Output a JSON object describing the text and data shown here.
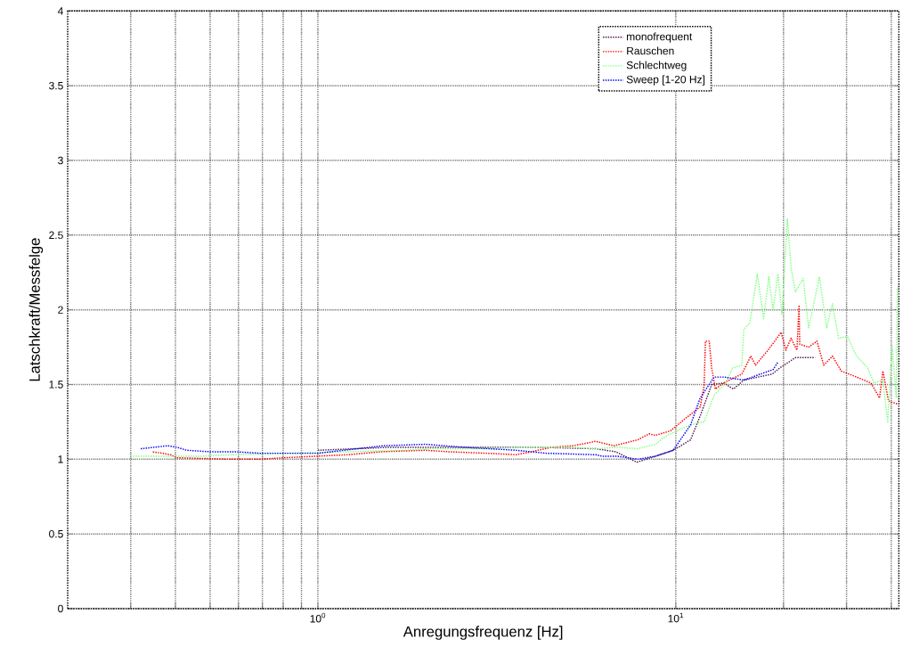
{
  "chart_data": {
    "type": "line",
    "xlabel": "Anregungsfrequenz [Hz]",
    "ylabel": "Latschkraft/Messfelge",
    "log": "x",
    "xlim": [
      0.2,
      42
    ],
    "ylim": [
      0,
      4
    ],
    "xticks": [
      {
        "value": 0.3,
        "label": null
      },
      {
        "value": 0.4,
        "label": null
      },
      {
        "value": 0.5,
        "label": null
      },
      {
        "value": 0.6,
        "label": null
      },
      {
        "value": 0.7,
        "label": null
      },
      {
        "value": 0.8,
        "label": null
      },
      {
        "value": 0.9,
        "label": null
      },
      {
        "value": 1,
        "label": "10$^{0}$"
      },
      {
        "value": 10,
        "label": "10$^{1}$"
      },
      {
        "value": 20,
        "label": null
      },
      {
        "value": 30,
        "label": null
      },
      {
        "value": 40,
        "label": null
      }
    ],
    "yticks": [
      0,
      0.5,
      1,
      1.5,
      2,
      2.5,
      3,
      3.5,
      4
    ],
    "grid": true,
    "legend": "top right",
    "line_style": "dotted",
    "series": [
      {
        "name": "monofrequent",
        "color": "#4d194d",
        "x": [
          1.0,
          1.59,
          2.8,
          4.11,
          5.98,
          6.8,
          7.78,
          8.77,
          9.84,
          11.0,
          11.7,
          12.6,
          13.6,
          14.5,
          15.5,
          18.6,
          19.5,
          21.6,
          24.5
        ],
        "values": [
          1.06,
          1.08,
          1.08,
          1.08,
          1.07,
          1.05,
          0.98,
          1.02,
          1.06,
          1.13,
          1.29,
          1.5,
          1.51,
          1.47,
          1.53,
          1.57,
          1.61,
          1.68,
          1.68
        ]
      },
      {
        "name": "Rauschen",
        "color": "#ff0000",
        "x": [
          0.346,
          0.388,
          0.404,
          0.57,
          0.687,
          0.8,
          0.99,
          1.21,
          1.5,
          2.0,
          2.32,
          2.97,
          3.58,
          3.95,
          4.5,
          5.16,
          5.98,
          6.71,
          7.83,
          8.43,
          8.77,
          9.67,
          10.6,
          11.7,
          12.0,
          12.1,
          12.4,
          12.6,
          12.9,
          13.6,
          15.3,
          16.2,
          16.7,
          18.1,
          18.9,
          19.7,
          20.3,
          21.0,
          21.8,
          22.1,
          22.2,
          23.5,
          24.8,
          25.9,
          27.4,
          29.0,
          32.0,
          35.1,
          37.1,
          37.9,
          39.3,
          41.6
        ],
        "values": [
          1.05,
          1.03,
          1.01,
          1.0,
          1.0,
          1.01,
          1.02,
          1.03,
          1.05,
          1.06,
          1.05,
          1.04,
          1.03,
          1.05,
          1.08,
          1.09,
          1.12,
          1.09,
          1.13,
          1.17,
          1.16,
          1.19,
          1.27,
          1.35,
          1.49,
          1.79,
          1.79,
          1.61,
          1.47,
          1.51,
          1.57,
          1.69,
          1.63,
          1.73,
          1.79,
          1.85,
          1.73,
          1.81,
          1.73,
          2.03,
          1.77,
          1.75,
          1.79,
          1.63,
          1.69,
          1.59,
          1.55,
          1.51,
          1.41,
          1.59,
          1.39,
          1.37
        ]
      },
      {
        "name": "Schlechtweg",
        "color": "#80ff80",
        "x": [
          0.3,
          0.47,
          0.57,
          0.83,
          1.21,
          1.78,
          2.0,
          2.81,
          3.95,
          5.16,
          5.98,
          6.86,
          7.83,
          8.77,
          9.45,
          11.0,
          12.0,
          12.8,
          13.8,
          14.4,
          15.3,
          15.5,
          16.1,
          16.9,
          17.6,
          18.2,
          18.7,
          19.3,
          19.8,
          20.5,
          21.0,
          21.6,
          22.7,
          23.5,
          25.2,
          26.4,
          27.4,
          28.5,
          30.2,
          32.0,
          34.4,
          35.8,
          37.9,
          39.1,
          40.2,
          41.3,
          41.6
        ],
        "values": [
          1.02,
          1.02,
          1.03,
          1.04,
          1.05,
          1.06,
          1.07,
          1.07,
          1.08,
          1.08,
          1.07,
          1.08,
          1.07,
          1.1,
          1.16,
          1.23,
          1.25,
          1.43,
          1.51,
          1.61,
          1.63,
          1.87,
          1.91,
          2.24,
          1.94,
          2.22,
          2.0,
          2.24,
          1.97,
          2.61,
          2.28,
          2.12,
          2.21,
          1.88,
          2.22,
          1.88,
          2.04,
          1.81,
          1.82,
          1.69,
          1.61,
          1.51,
          1.53,
          1.25,
          1.76,
          1.41,
          2.15
        ]
      },
      {
        "name": "Sweep [1-20 Hz]",
        "color": "#0000ff",
        "x": [
          0.32,
          0.38,
          0.404,
          0.43,
          0.5,
          0.59,
          0.69,
          1.0,
          1.52,
          2.0,
          2.55,
          3.58,
          4.35,
          5.98,
          6.23,
          6.86,
          7.83,
          8.77,
          9.84,
          11.0,
          11.7,
          12.8,
          13.6,
          15.5,
          18.7,
          19.3
        ],
        "values": [
          1.07,
          1.09,
          1.08,
          1.06,
          1.05,
          1.05,
          1.04,
          1.04,
          1.09,
          1.1,
          1.08,
          1.06,
          1.04,
          1.03,
          1.02,
          1.02,
          1.0,
          1.02,
          1.06,
          1.23,
          1.41,
          1.55,
          1.55,
          1.53,
          1.6,
          1.65
        ]
      }
    ]
  }
}
